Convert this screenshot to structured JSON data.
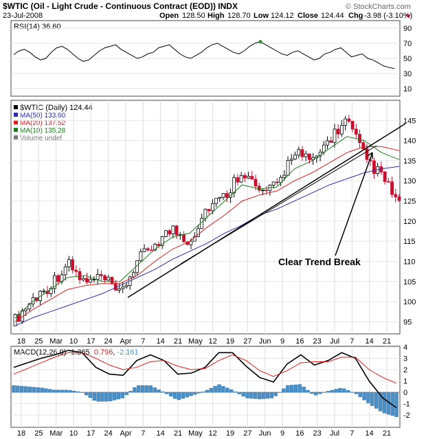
{
  "header": {
    "title": "$WTIC (Oil - Light Crude - Continuous Contract (EOD)) INDX",
    "watermark": "© StockCharts.com",
    "date": "23-Jul-2008",
    "open_label": "Open",
    "open": "128.50",
    "high_label": "High",
    "high": "128.70",
    "low_label": "Low",
    "low": "124.12",
    "close_label": "Close",
    "close": "124.44",
    "chg_label": "Chg",
    "chg": "-3.98 (-3.10%)"
  },
  "rsi_panel": {
    "label": "RSI(14) 36.60",
    "ticks": [
      90,
      70,
      50,
      30,
      10
    ],
    "value": 36.6
  },
  "price_panel": {
    "legend": [
      {
        "label": "$WTIC (Daily) 124.44",
        "color": "#000000"
      },
      {
        "label": "MA(50) 133.60",
        "color": "#2b2bb0"
      },
      {
        "label": "MA(20) 137.52",
        "color": "#e31a1c"
      },
      {
        "label": "MA(10) 135.28",
        "color": "#1a7f1a"
      },
      {
        "label": "Volume undef",
        "color": "#777777"
      }
    ],
    "annotation": "Clear Trend Break",
    "ticks": [
      145,
      140,
      135,
      130,
      125,
      120,
      115,
      110,
      105,
      100,
      95
    ]
  },
  "macd_panel": {
    "label": "MACD(12,26,9)",
    "macd": "-1.365",
    "signal": "0.796",
    "hist": "-2.161",
    "ticks": [
      4,
      3,
      2,
      1,
      0,
      -1,
      -2
    ]
  },
  "x_axis": {
    "labels": [
      "18",
      "25",
      "Mar",
      "10",
      "17",
      "24",
      "Apr",
      "7",
      "14",
      "21",
      "May",
      "12",
      "19",
      "27",
      "Jun",
      "9",
      "16",
      "23",
      "Jul",
      "7",
      "14",
      "21"
    ]
  },
  "colors": {
    "up": "#000000",
    "down": "#c8102e",
    "rsi_fill": "#2e8b2e",
    "hist": "#4a90c8"
  },
  "chart_data": [
    {
      "type": "line",
      "title": "RSI(14) 36.60",
      "ylim": [
        0,
        100
      ],
      "reference_lines": [
        70,
        30
      ],
      "series": [
        {
          "name": "RSI(14)",
          "values": [
            55,
            60,
            62,
            58,
            52,
            48,
            50,
            58,
            64,
            66,
            62,
            56,
            50,
            46,
            48,
            54,
            60,
            64,
            66,
            68,
            62,
            58,
            54,
            50,
            52,
            56,
            58,
            64,
            66,
            68,
            62,
            56,
            52,
            50,
            54,
            58,
            64,
            68,
            70,
            66,
            62,
            58,
            56,
            60,
            66,
            70,
            72,
            68,
            64,
            60,
            56,
            54,
            58,
            60,
            56,
            52,
            48,
            50,
            56,
            58,
            62,
            64,
            58,
            52,
            54,
            56,
            50,
            48,
            44,
            40,
            38,
            36.6
          ]
        }
      ]
    },
    {
      "type": "candlestick",
      "title": "$WTIC (Daily) 124.44",
      "ylim": [
        92,
        150
      ],
      "x": [
        "2008-02-18",
        "2008-02-25",
        "2008-03-03",
        "2008-03-10",
        "2008-03-17",
        "2008-03-24",
        "2008-03-31",
        "2008-04-07",
        "2008-04-14",
        "2008-04-21",
        "2008-04-28",
        "2008-05-05",
        "2008-05-12",
        "2008-05-19",
        "2008-05-27",
        "2008-06-02",
        "2008-06-09",
        "2008-06-16",
        "2008-06-23",
        "2008-06-30",
        "2008-07-07",
        "2008-07-14",
        "2008-07-21"
      ],
      "close": [
        95.5,
        100.5,
        104,
        109.5,
        104.5,
        106,
        101.5,
        110,
        114.5,
        118,
        115,
        123.5,
        126,
        133,
        127,
        128.5,
        138,
        134,
        140.5,
        145,
        136,
        131,
        124.44
      ],
      "series": [
        {
          "name": "MA(50)",
          "values": [
            94,
            96,
            97.5,
            99,
            100.5,
            102,
            104,
            106,
            108,
            110.5,
            112.5,
            114.5,
            117,
            119,
            121.5,
            123,
            125,
            127,
            129,
            130.5,
            132,
            133,
            133.6
          ]
        },
        {
          "name": "MA(20)",
          "values": [
            95,
            98,
            100.5,
            103,
            104,
            104.5,
            104.5,
            106.5,
            110,
            113,
            115,
            118.5,
            121.5,
            125,
            126.5,
            127.5,
            130,
            132,
            134.5,
            137,
            138.5,
            138.5,
            137.52
          ]
        },
        {
          "name": "MA(10)",
          "values": [
            96,
            100,
            103,
            106,
            106.5,
            105,
            105,
            109,
            113,
            116,
            117,
            121,
            125,
            129,
            128,
            128.5,
            133,
            135,
            138,
            141,
            140,
            137,
            135.28
          ]
        }
      ],
      "annotations": [
        "Clear Trend Break"
      ]
    },
    {
      "type": "line",
      "title": "MACD(12,26,9)",
      "ylim": [
        -3,
        5
      ],
      "series": [
        {
          "name": "MACD",
          "values": [
            2.2,
            2.6,
            3,
            3.3,
            3.7,
            3.5,
            2.2,
            1.6,
            1.5,
            2.8,
            3.3,
            2.8,
            1.6,
            1.7,
            2.2,
            3.5,
            3.5,
            2.3,
            1.3,
            0.9,
            2.5,
            3.3,
            2.4,
            2.8,
            3.5,
            3.0,
            1.0,
            -0.5,
            -1.37
          ]
        },
        {
          "name": "Signal",
          "values": [
            1.6,
            2.1,
            2.6,
            3.1,
            3.5,
            3.5,
            3.0,
            2.4,
            2.0,
            2.2,
            2.7,
            2.8,
            2.3,
            2.0,
            2.1,
            2.8,
            3.3,
            2.8,
            1.9,
            1.4,
            1.9,
            2.6,
            2.7,
            2.7,
            3.1,
            3.1,
            2.0,
            1.3,
            0.8
          ]
        },
        {
          "name": "Histogram",
          "values": [
            0.6,
            0.5,
            0.4,
            0.2,
            0.2,
            0,
            -0.8,
            -0.8,
            -0.5,
            0.6,
            0.6,
            0,
            -0.7,
            -0.3,
            0.1,
            0.7,
            0.2,
            -0.5,
            -0.6,
            -0.5,
            0.6,
            0.7,
            -0.3,
            0.1,
            0.4,
            -0.1,
            -1.0,
            -1.8,
            -2.16
          ]
        }
      ]
    }
  ]
}
